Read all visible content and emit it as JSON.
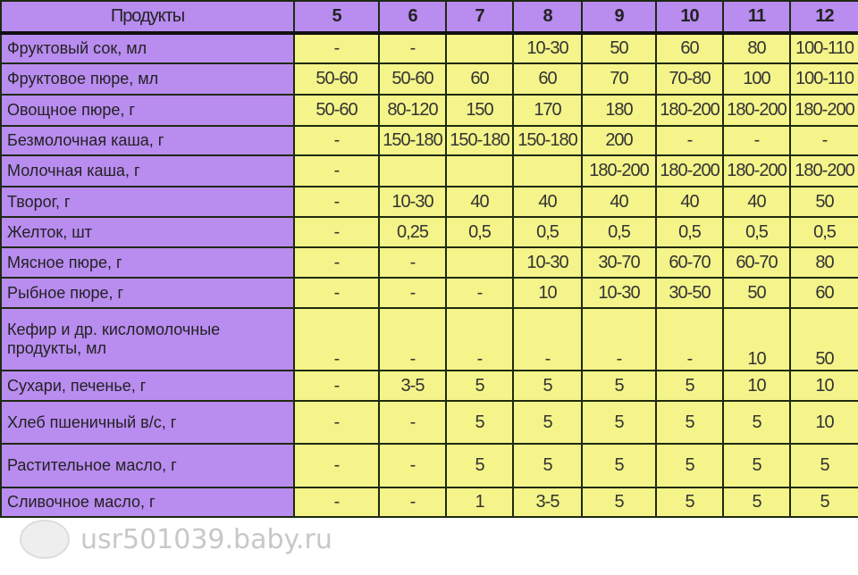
{
  "header": {
    "product_label": "Продукты",
    "months": [
      "5",
      "6",
      "7",
      "8",
      "9",
      "10",
      "11",
      "12"
    ]
  },
  "rows": [
    {
      "label": "Фруктовый сок, мл",
      "values": [
        "-",
        "-",
        "",
        "10-30",
        "50",
        "60",
        "80",
        "100-110"
      ]
    },
    {
      "label": "Фруктовое пюре, мл",
      "values": [
        "50-60",
        "50-60",
        "60",
        "60",
        "70",
        "70-80",
        "100",
        "100-110"
      ]
    },
    {
      "label": "Овощное пюре, г",
      "values": [
        "50-60",
        "80-120",
        "150",
        "170",
        "180",
        "180-200",
        "180-200",
        "180-200"
      ]
    },
    {
      "label": "Безмолочная каша, г",
      "values": [
        "-",
        "150-180",
        "150-180",
        "150-180",
        "200",
        "-",
        "-",
        "-"
      ]
    },
    {
      "label": "Молочная каша, г",
      "values": [
        "-",
        "",
        "",
        "",
        "180-200",
        "180-200",
        "180-200",
        "180-200"
      ]
    },
    {
      "label": "Творог, г",
      "values": [
        "-",
        "10-30",
        "40",
        "40",
        "40",
        "40",
        "40",
        "50"
      ]
    },
    {
      "label": "Желток, шт",
      "values": [
        "-",
        "0,25",
        "0,5",
        "0,5",
        "0,5",
        "0,5",
        "0,5",
        "0,5"
      ]
    },
    {
      "label": "Мясное пюре, г",
      "values": [
        "-",
        "-",
        "",
        "10-30",
        "30-70",
        "60-70",
        "60-70",
        "80"
      ]
    },
    {
      "label": "Рыбное пюре, г",
      "values": [
        "-",
        "-",
        "-",
        "10",
        "10-30",
        "30-50",
        "50",
        "60"
      ]
    },
    {
      "label": "Кефир и др. кисломолочные продукты, мл",
      "values": [
        "-",
        "-",
        "-",
        "-",
        "-",
        "-",
        "10",
        "50"
      ]
    },
    {
      "label": "Сухари, печенье, г",
      "values": [
        "-",
        "3-5",
        "5",
        "5",
        "5",
        "5",
        "10",
        "10"
      ]
    },
    {
      "label": "Хлеб пшеничный в/с, г",
      "values": [
        "-",
        "-",
        "5",
        "5",
        "5",
        "5",
        "5",
        "10"
      ]
    },
    {
      "label": "Растительное масло, г",
      "values": [
        "-",
        "-",
        "5",
        "5",
        "5",
        "5",
        "5",
        "5"
      ]
    },
    {
      "label": "Сливочное масло, г",
      "values": [
        "-",
        "-",
        "1",
        "3-5",
        "5",
        "5",
        "5",
        "5"
      ]
    }
  ],
  "watermark": "usr501039.baby.ru"
}
